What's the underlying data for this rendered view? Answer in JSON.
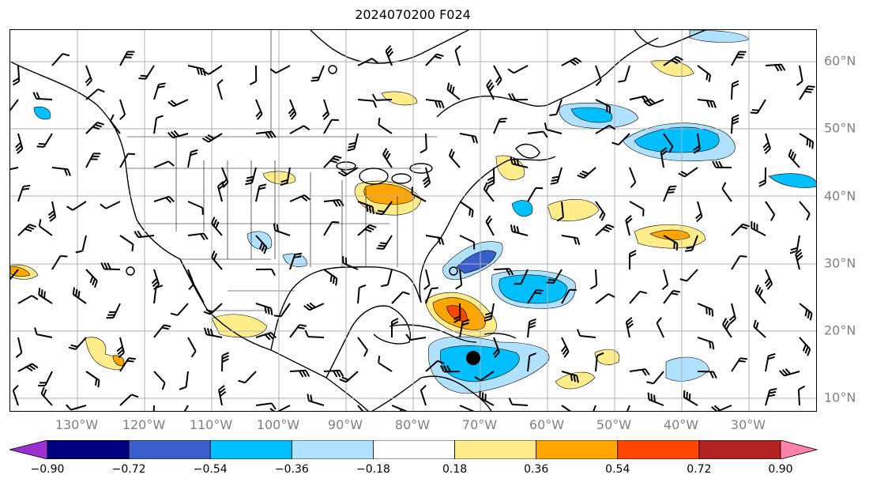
{
  "title": "2024070200 F024",
  "map": {
    "lat_labels": [
      "10°N",
      "20°N",
      "30°N",
      "40°N",
      "50°N",
      "60°N"
    ],
    "lon_labels": [
      "130°W",
      "120°W",
      "110°W",
      "100°W",
      "90°W",
      "80°W",
      "70°W",
      "60°W",
      "50°W",
      "40°W",
      "30°W"
    ],
    "storm_marker": "black-dot-tropical-cyclone"
  },
  "colorbar": {
    "ticks": [
      "−0.90",
      "−0.72",
      "−0.54",
      "−0.36",
      "−0.18",
      "0.18",
      "0.36",
      "0.54",
      "0.72",
      "0.90"
    ],
    "colors": [
      "#9b30d0",
      "#000080",
      "#3a5fcd",
      "#00bfff",
      "#b0e2ff",
      "#ffffff",
      "#ffec8b",
      "#ffa500",
      "#ff4500",
      "#b22222",
      "#ff82ab"
    ]
  }
}
